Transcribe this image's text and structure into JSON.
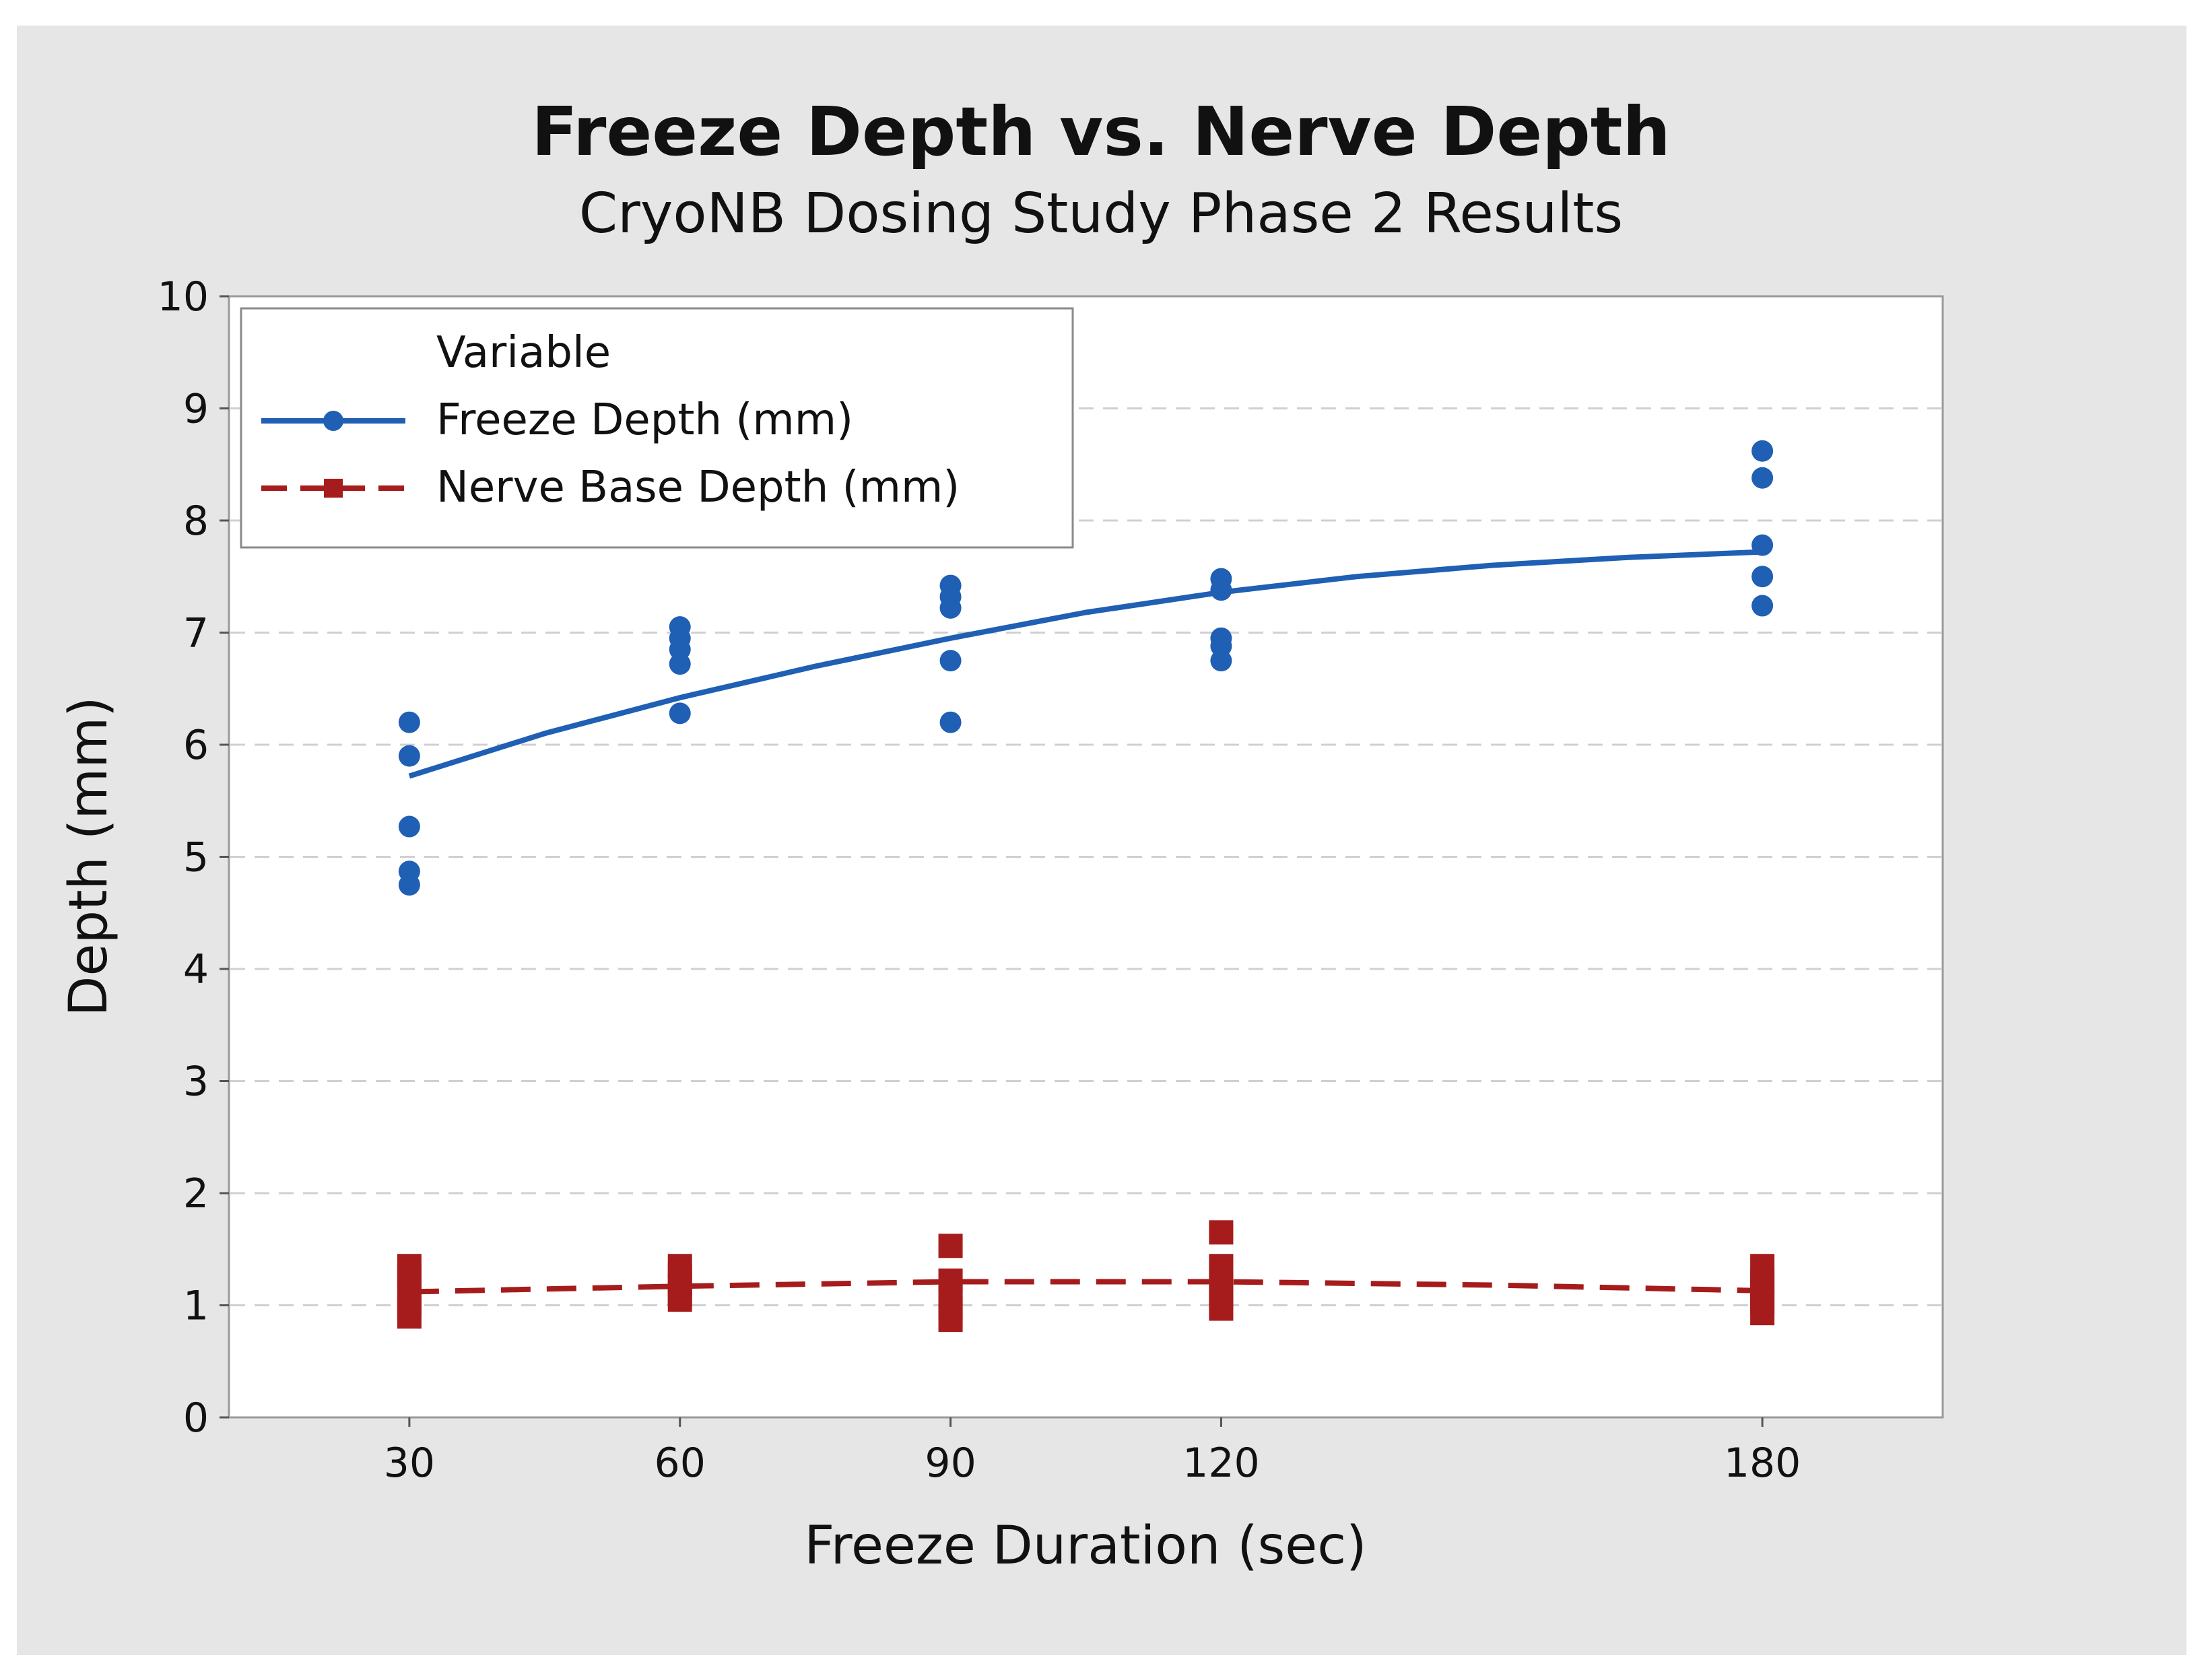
{
  "chart_data": {
    "type": "scatter",
    "title": "Freeze Depth vs. Nerve Depth",
    "subtitle": "CryoNB Dosing Study Phase 2 Results",
    "xlabel": "Freeze Duration (sec)",
    "ylabel": "Depth (mm)",
    "ylim": [
      0,
      10
    ],
    "xlim": [
      10,
      200
    ],
    "x_ticks": [
      "30",
      "60",
      "90",
      "120",
      "180"
    ],
    "y_ticks": [
      "0",
      "1",
      "2",
      "3",
      "4",
      "5",
      "6",
      "7",
      "8",
      "9",
      "10"
    ],
    "grid": "horizontal dashed",
    "legend": {
      "title": "Variable",
      "position": "top-left",
      "entries": [
        "Freeze Depth (mm)",
        "Nerve Base Depth (mm)"
      ]
    },
    "series": [
      {
        "name": "Freeze Depth (mm)",
        "color": "#1f5fb4",
        "marker": "circle",
        "line": "solid",
        "points": [
          {
            "x": 30,
            "y": 6.2
          },
          {
            "x": 30,
            "y": 5.9
          },
          {
            "x": 30,
            "y": 5.27
          },
          {
            "x": 30,
            "y": 4.87
          },
          {
            "x": 30,
            "y": 4.75
          },
          {
            "x": 60,
            "y": 7.05
          },
          {
            "x": 60,
            "y": 6.95
          },
          {
            "x": 60,
            "y": 6.85
          },
          {
            "x": 60,
            "y": 6.72
          },
          {
            "x": 60,
            "y": 6.28
          },
          {
            "x": 90,
            "y": 7.42
          },
          {
            "x": 90,
            "y": 7.32
          },
          {
            "x": 90,
            "y": 7.22
          },
          {
            "x": 90,
            "y": 6.75
          },
          {
            "x": 90,
            "y": 6.2
          },
          {
            "x": 120,
            "y": 7.48
          },
          {
            "x": 120,
            "y": 7.38
          },
          {
            "x": 120,
            "y": 6.95
          },
          {
            "x": 120,
            "y": 6.88
          },
          {
            "x": 120,
            "y": 6.75
          },
          {
            "x": 180,
            "y": 8.62
          },
          {
            "x": 180,
            "y": 8.38
          },
          {
            "x": 180,
            "y": 7.78
          },
          {
            "x": 180,
            "y": 7.5
          },
          {
            "x": 180,
            "y": 7.24
          }
        ],
        "trend": [
          {
            "x": 30,
            "y": 5.72
          },
          {
            "x": 45,
            "y": 6.1
          },
          {
            "x": 60,
            "y": 6.42
          },
          {
            "x": 75,
            "y": 6.7
          },
          {
            "x": 90,
            "y": 6.95
          },
          {
            "x": 105,
            "y": 7.18
          },
          {
            "x": 120,
            "y": 7.36
          },
          {
            "x": 135,
            "y": 7.5
          },
          {
            "x": 150,
            "y": 7.6
          },
          {
            "x": 165,
            "y": 7.67
          },
          {
            "x": 180,
            "y": 7.72
          }
        ]
      },
      {
        "name": "Nerve Base Depth (mm)",
        "color": "#a61c1c",
        "marker": "square",
        "line": "dashed",
        "points": [
          {
            "x": 30,
            "y": 1.35
          },
          {
            "x": 30,
            "y": 1.25
          },
          {
            "x": 30,
            "y": 1.12
          },
          {
            "x": 30,
            "y": 1.0
          },
          {
            "x": 30,
            "y": 0.9
          },
          {
            "x": 60,
            "y": 1.35
          },
          {
            "x": 60,
            "y": 1.27
          },
          {
            "x": 60,
            "y": 1.18
          },
          {
            "x": 60,
            "y": 1.1
          },
          {
            "x": 60,
            "y": 1.05
          },
          {
            "x": 90,
            "y": 1.53
          },
          {
            "x": 90,
            "y": 1.22
          },
          {
            "x": 90,
            "y": 1.08
          },
          {
            "x": 90,
            "y": 0.97
          },
          {
            "x": 90,
            "y": 0.87
          },
          {
            "x": 120,
            "y": 1.65
          },
          {
            "x": 120,
            "y": 1.35
          },
          {
            "x": 120,
            "y": 1.2
          },
          {
            "x": 120,
            "y": 1.07
          },
          {
            "x": 120,
            "y": 0.97
          },
          {
            "x": 180,
            "y": 1.35
          },
          {
            "x": 180,
            "y": 1.22
          },
          {
            "x": 180,
            "y": 1.13
          },
          {
            "x": 180,
            "y": 1.03
          },
          {
            "x": 180,
            "y": 0.93
          }
        ],
        "trend": [
          {
            "x": 30,
            "y": 1.12
          },
          {
            "x": 60,
            "y": 1.17
          },
          {
            "x": 90,
            "y": 1.21
          },
          {
            "x": 120,
            "y": 1.21
          },
          {
            "x": 150,
            "y": 1.18
          },
          {
            "x": 180,
            "y": 1.13
          }
        ]
      }
    ]
  }
}
